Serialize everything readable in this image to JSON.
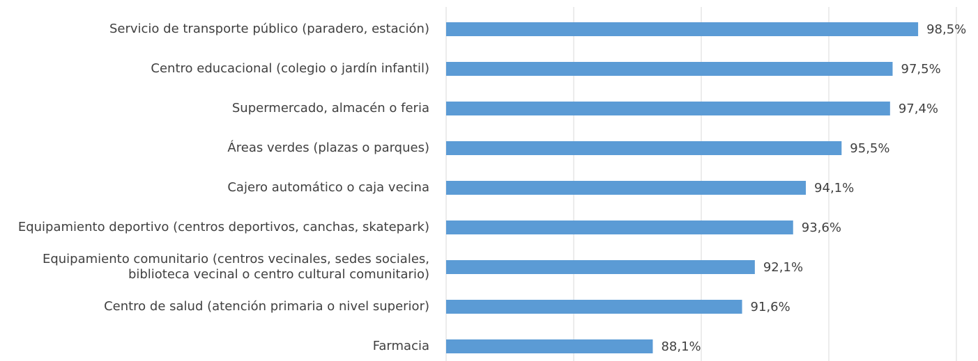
{
  "chart_data": {
    "type": "bar",
    "orientation": "horizontal",
    "categories": [
      "Servicio de transporte público (paradero, estación)",
      "Centro educacional (colegio o jardín infantil)",
      "Supermercado, almacén o feria",
      "Áreas verdes (plazas o parques)",
      "Cajero automático o caja vecina",
      "Equipamiento deportivo (centros deportivos, canchas, skatepark)",
      "Equipamiento comunitario (centros vecinales, sedes sociales, biblioteca vecinal o centro cultural comunitario)",
      "Centro de salud (atención primaria o nivel superior)",
      "Farmacia"
    ],
    "values": [
      98.5,
      97.5,
      97.4,
      95.5,
      94.1,
      93.6,
      92.1,
      91.6,
      88.1
    ],
    "value_labels": [
      "98,5%",
      "97,5%",
      "97,4%",
      "95,5%",
      "94,1%",
      "93,6%",
      "92,1%",
      "91,6%",
      "88,1%"
    ],
    "color": "#5b9bd5",
    "xlim": [
      80,
      100
    ],
    "xticks": [
      80,
      85,
      90,
      95,
      100
    ],
    "grid": true
  }
}
